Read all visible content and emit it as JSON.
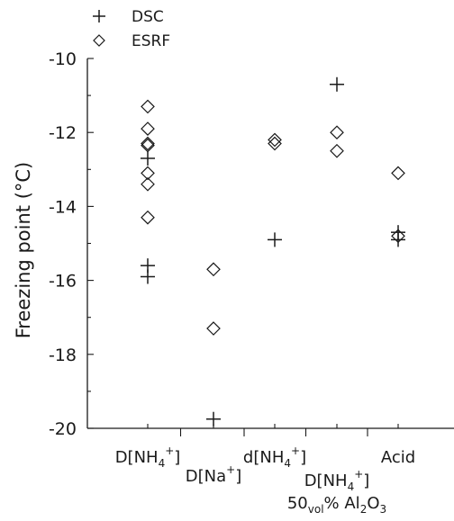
{
  "chart_data": {
    "type": "scatter",
    "ylabel": "Freezing point (°C)",
    "ylim": [
      -20,
      -10
    ],
    "yticks": [
      -20,
      -18,
      -16,
      -14,
      -12,
      -10
    ],
    "y_minor_step": 1,
    "grid": false,
    "legend_position": "top-left",
    "categories": [
      {
        "parts": [
          {
            "t": "D[NH"
          },
          {
            "t": "4",
            "s": "sub"
          },
          {
            "t": "+",
            "s": "sup"
          },
          {
            "t": "]"
          }
        ]
      },
      {
        "parts": [
          {
            "t": "D[Na"
          },
          {
            "t": "+",
            "s": "sup"
          },
          {
            "t": "]"
          }
        ]
      },
      {
        "parts": [
          {
            "t": "d[NH"
          },
          {
            "t": "4",
            "s": "sub"
          },
          {
            "t": "+",
            "s": "sup"
          },
          {
            "t": "]"
          }
        ]
      },
      {
        "parts": [
          {
            "t": "D[NH"
          },
          {
            "t": "4",
            "s": "sub"
          },
          {
            "t": "+",
            "s": "sup"
          },
          {
            "t": "]"
          }
        ],
        "line2": [
          {
            "t": "50"
          },
          {
            "t": "vol",
            "s": "sub"
          },
          {
            "t": "% Al"
          },
          {
            "t": "2",
            "s": "sub"
          },
          {
            "t": "O"
          },
          {
            "t": "3",
            "s": "sub"
          }
        ]
      },
      {
        "parts": [
          {
            "t": "Acid"
          }
        ]
      }
    ],
    "series": [
      {
        "name": "DSC",
        "marker": "plus",
        "points": [
          {
            "category": 0,
            "y": -12.7
          },
          {
            "category": 0,
            "y": -15.6
          },
          {
            "category": 0,
            "y": -15.9
          },
          {
            "category": 1,
            "y": -19.75
          },
          {
            "category": 2,
            "y": -14.9
          },
          {
            "category": 3,
            "y": -10.7
          },
          {
            "category": 4,
            "y": -14.7
          },
          {
            "category": 4,
            "y": -14.9
          }
        ]
      },
      {
        "name": "ESRF",
        "marker": "diamond",
        "points": [
          {
            "category": 0,
            "y": -11.3
          },
          {
            "category": 0,
            "y": -11.9
          },
          {
            "category": 0,
            "y": -12.3
          },
          {
            "category": 0,
            "y": -12.35
          },
          {
            "category": 0,
            "y": -13.1
          },
          {
            "category": 0,
            "y": -13.4
          },
          {
            "category": 0,
            "y": -14.3
          },
          {
            "category": 1,
            "y": -15.7
          },
          {
            "category": 1,
            "y": -17.3
          },
          {
            "category": 2,
            "y": -12.2
          },
          {
            "category": 2,
            "y": -12.3
          },
          {
            "category": 3,
            "y": -12.0
          },
          {
            "category": 3,
            "y": -12.5
          },
          {
            "category": 4,
            "y": -13.1
          },
          {
            "category": 4,
            "y": -14.8
          }
        ]
      }
    ]
  }
}
